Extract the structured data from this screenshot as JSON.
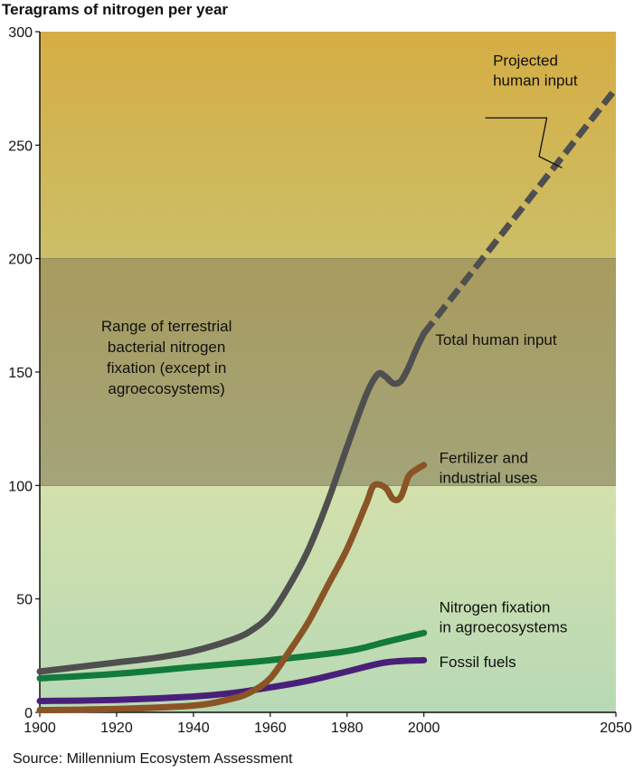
{
  "chart_data": {
    "type": "line",
    "title": "Teragrams of nitrogen per year",
    "source": "Source: Millennium Ecosystem Assessment",
    "x_ticks": [
      "1900",
      "1920",
      "1940",
      "1960",
      "1980",
      "2000",
      "2050"
    ],
    "y_ticks": [
      "0",
      "50",
      "100",
      "150",
      "200",
      "250",
      "300"
    ],
    "xlim": [
      1900,
      2050
    ],
    "ylim": [
      0,
      300
    ],
    "bands": [
      {
        "from": 0,
        "to": 100,
        "color_top": "#d3e1ab",
        "color_bottom": "#b8d9b6"
      },
      {
        "from": 100,
        "to": 200,
        "color_top": "#a89b5e",
        "color_bottom": "#a3a479",
        "label": "Range of terrestrial\nbacterial nitrogen\nfixation (except in\nagroecosystems)"
      },
      {
        "from": 200,
        "to": 300,
        "color_top": "#d6ad44",
        "color_bottom": "#cbbf67"
      }
    ],
    "series": [
      {
        "name": "Total human input",
        "color": "#4f4f4f",
        "x": [
          1900,
          1910,
          1920,
          1930,
          1940,
          1950,
          1955,
          1960,
          1965,
          1970,
          1975,
          1980,
          1985,
          1988,
          1990,
          1992,
          1994,
          1996,
          1998,
          2000
        ],
        "y": [
          18,
          20,
          22,
          24,
          27,
          32,
          36,
          43,
          56,
          72,
          93,
          117,
          140,
          149,
          148,
          145,
          146,
          152,
          160,
          167
        ]
      },
      {
        "name": "Projected human input",
        "color": "#4f4f4f",
        "dashed": true,
        "x": [
          2000,
          2050
        ],
        "y": [
          167,
          275
        ]
      },
      {
        "name": "Fertilizer and industrial uses",
        "color": "#8a5426",
        "x": [
          1900,
          1920,
          1940,
          1950,
          1955,
          1960,
          1965,
          1970,
          1975,
          1980,
          1985,
          1987,
          1990,
          1992,
          1994,
          1996,
          1998,
          2000
        ],
        "y": [
          1,
          1.5,
          3,
          6,
          9,
          15,
          27,
          40,
          56,
          72,
          92,
          100,
          99,
          94,
          95,
          104,
          107,
          109
        ]
      },
      {
        "name": "Nitrogen fixation in agroecosystems",
        "color": "#127a3a",
        "x": [
          1900,
          1920,
          1940,
          1960,
          1980,
          1990,
          2000
        ],
        "y": [
          15,
          17,
          20,
          23,
          27,
          31,
          35
        ]
      },
      {
        "name": "Fossil fuels",
        "color": "#4a1f7a",
        "x": [
          1900,
          1920,
          1940,
          1950,
          1960,
          1970,
          1980,
          1990,
          2000
        ],
        "y": [
          5,
          5.5,
          7,
          8.5,
          11,
          14,
          18,
          22,
          23
        ]
      }
    ],
    "annotations": [
      {
        "text": "Projected\nhuman input",
        "x": 2018,
        "y": 285,
        "anchor": "start"
      },
      {
        "text": "Total human input",
        "x": 2003,
        "y": 162,
        "anchor": "start"
      },
      {
        "text": "Fertilizer and\nindustrial uses",
        "x": 2004,
        "y": 110,
        "anchor": "start"
      },
      {
        "text": "Nitrogen fixation\nin agroecosystems",
        "x": 2004,
        "y": 44,
        "anchor": "start"
      },
      {
        "text": "Fossil fuels",
        "x": 2004,
        "y": 20,
        "anchor": "start"
      }
    ]
  }
}
